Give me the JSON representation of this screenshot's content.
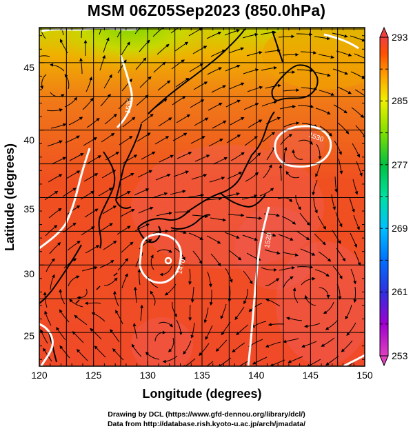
{
  "title": "MSM 06Z05Sep2023 (850.0hPa)",
  "axes": {
    "x_label": "Longitude (degrees)",
    "y_label": "Latitude  (degrees)",
    "x_range": [
      120,
      150
    ],
    "y_range": [
      22.5,
      47.6
    ],
    "x_ticks": [
      "120",
      "125",
      "130",
      "135",
      "140",
      "145",
      "150"
    ],
    "y_ticks": [
      "25",
      "30",
      "35",
      "40",
      "45"
    ]
  },
  "colorbar": {
    "min": 253,
    "max": 293,
    "tick_labels": [
      "293",
      "285",
      "277",
      "269",
      "261",
      "253"
    ],
    "stops": [
      "#e040c0",
      "#b000d0",
      "#4040e0",
      "#0070ff",
      "#00c0ff",
      "#00e0a0",
      "#00c040",
      "#80e000",
      "#f0f000",
      "#ffa000",
      "#ff5000",
      "#f04040"
    ]
  },
  "contour_labels": [
    "1530",
    "1530",
    "1470",
    "1520"
  ],
  "credits": {
    "line1": "Drawing by DCL (https://www.gfd-dennou.org/library/dcl/)",
    "line2": "Data from http://database.rish.kyoto-u.ac.jp/arch/jmadata/"
  }
}
